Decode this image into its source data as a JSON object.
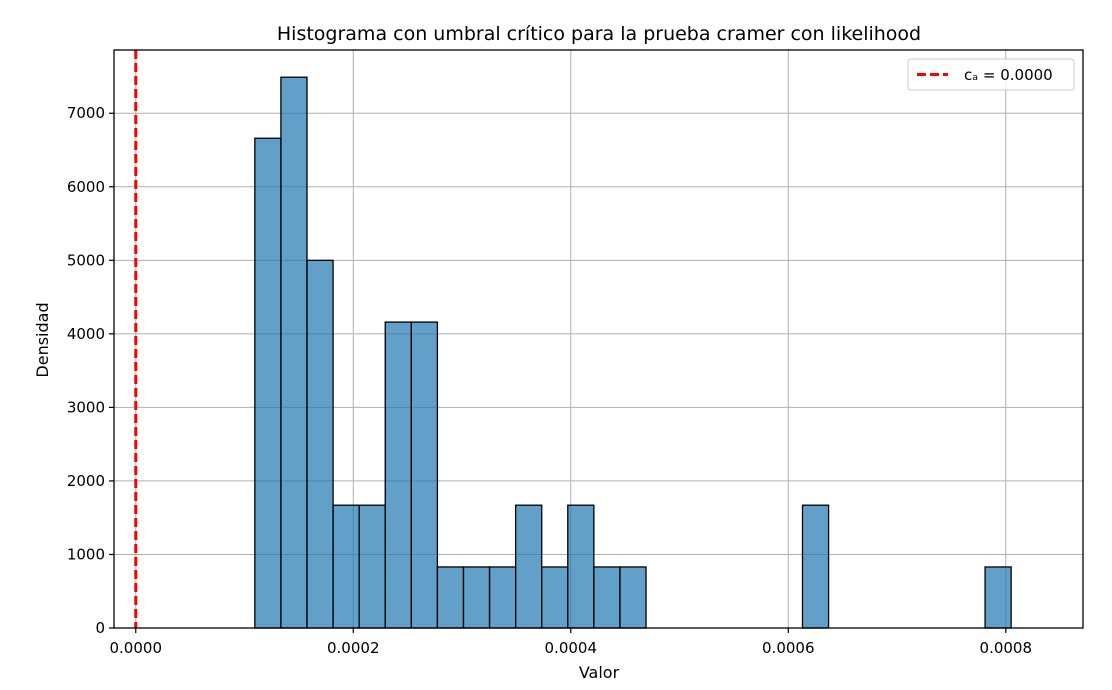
{
  "chart_data": {
    "type": "bar",
    "title": "Histograma con umbral crítico para la prueba cramer con  likelihood",
    "xlabel": "Valor",
    "ylabel": "Densidad",
    "xlim": [
      -2e-05,
      0.000871
    ],
    "ylim": [
      0,
      7860
    ],
    "xticks": [
      0.0,
      0.0002,
      0.0004,
      0.0006,
      0.0008
    ],
    "xtick_labels": [
      "0.0000",
      "0.0002",
      "0.0004",
      "0.0006",
      "0.0008"
    ],
    "yticks": [
      0,
      1000,
      2000,
      3000,
      4000,
      5000,
      6000,
      7000
    ],
    "ytick_labels": [
      "0",
      "1000",
      "2000",
      "3000",
      "4000",
      "5000",
      "6000",
      "7000"
    ],
    "grid": true,
    "bin_start": 0.0001095,
    "bin_width": 2.398e-05,
    "values": [
      6660,
      7490,
      5000,
      1670,
      1670,
      4160,
      4160,
      830,
      830,
      830,
      1670,
      830,
      1670,
      830,
      830,
      0,
      0,
      0,
      0,
      0,
      0,
      1670,
      0,
      0,
      0,
      0,
      0,
      0,
      830
    ],
    "bar_color": "#1f77b4",
    "bar_alpha": 0.7,
    "bar_edge_color": "#000000",
    "threshold": {
      "value": 0.0,
      "label": "cₐ = 0.0000",
      "color": "#ff0000",
      "style": "dashed"
    },
    "legend_position": "top-right"
  }
}
